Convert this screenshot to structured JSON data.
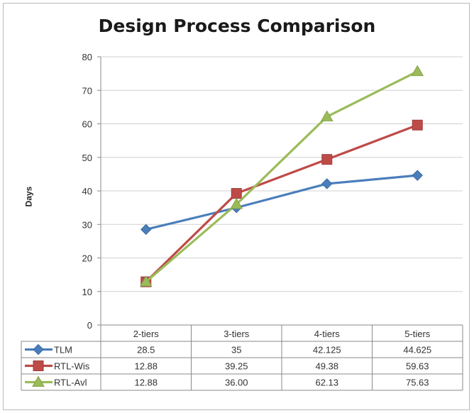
{
  "chart_data": {
    "type": "line",
    "title": "Design Process Comparison",
    "xlabel": "",
    "ylabel": "Days",
    "ylim": [
      0,
      80
    ],
    "yticks": [
      "0",
      "10",
      "20",
      "30",
      "40",
      "50",
      "60",
      "70",
      "80"
    ],
    "categories": [
      "2-tiers",
      "3-tiers",
      "4-tiers",
      "5-tiers"
    ],
    "grid": true,
    "legend": "data-table",
    "series": [
      {
        "name": "TLM",
        "values": [
          28.5,
          35,
          42.125,
          44.625
        ],
        "labels": [
          "28.5",
          "35",
          "42.125",
          "44.625"
        ],
        "color": "#4a7ebb",
        "marker": "diamond"
      },
      {
        "name": "RTL-Wis",
        "values": [
          12.88,
          39.25,
          49.38,
          59.63
        ],
        "labels": [
          "12.88",
          "39.25",
          "49.38",
          "59.63"
        ],
        "color": "#be4b48",
        "marker": "square"
      },
      {
        "name": "RTL-Avl",
        "values": [
          12.88,
          36.0,
          62.13,
          75.63
        ],
        "labels": [
          "12.88",
          "36.00",
          "62.13",
          "75.63"
        ],
        "color": "#9bbb59",
        "marker": "triangle"
      }
    ]
  }
}
